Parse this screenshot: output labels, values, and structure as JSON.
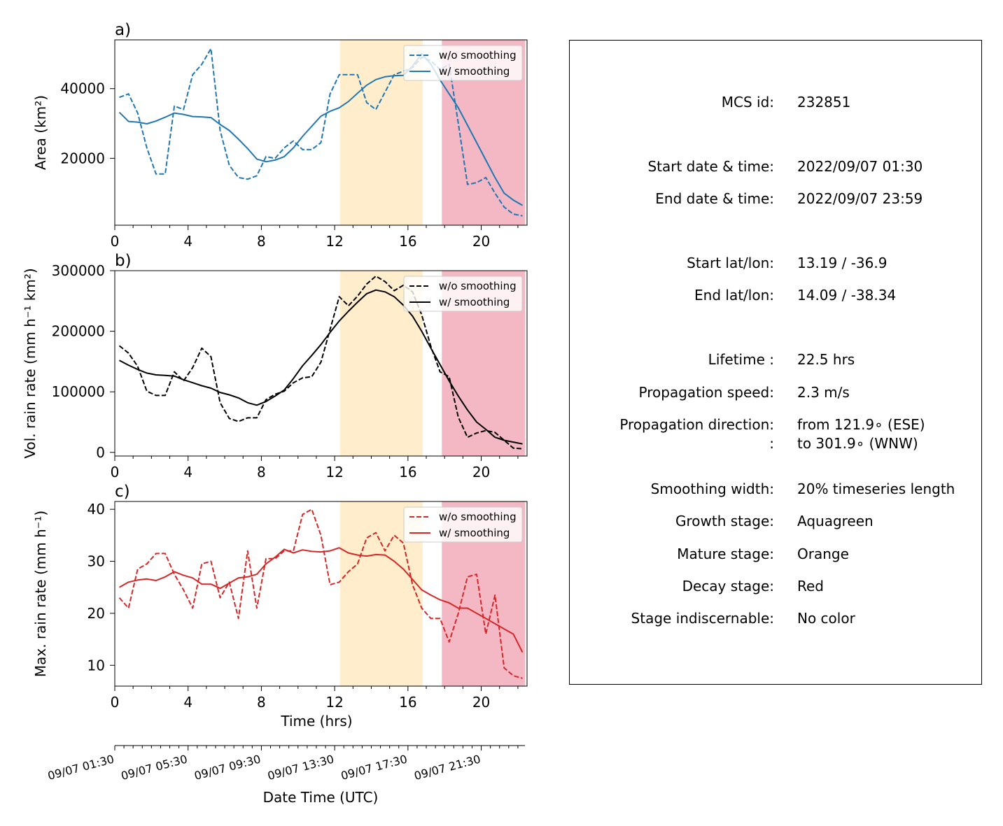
{
  "chart_data": [
    {
      "id": "a",
      "type": "line",
      "panel_label": "a)",
      "ylabel": "Area  (km²)",
      "xlim": [
        0,
        22.5
      ],
      "ylim": [
        800,
        54000
      ],
      "yticks": [
        20000,
        40000
      ],
      "ytick_labels": [
        "20000",
        "40000"
      ],
      "xticks": [
        0,
        4,
        8,
        12,
        16,
        20
      ],
      "xtick_labels": [
        "0",
        "4",
        "8",
        "12",
        "16",
        "20"
      ],
      "color": "#1f77b4",
      "legend_position": "upper right",
      "series": [
        {
          "name": "w/o smoothing",
          "style": "dashed",
          "x": [
            0.25,
            0.75,
            1.25,
            1.75,
            2.25,
            2.75,
            3.25,
            3.75,
            4.25,
            4.75,
            5.25,
            5.75,
            6.25,
            6.75,
            7.25,
            7.75,
            8.25,
            8.75,
            9.25,
            9.75,
            10.25,
            10.75,
            11.25,
            11.75,
            12.25,
            12.75,
            13.25,
            13.75,
            14.25,
            14.75,
            15.25,
            15.75,
            16.25,
            16.75,
            17.25,
            17.75,
            18.25,
            18.75,
            19.25,
            19.75,
            20.25,
            20.75,
            21.25,
            21.75,
            22.25
          ],
          "y": [
            37500,
            38500,
            33000,
            23000,
            15500,
            15500,
            35000,
            34000,
            44000,
            47000,
            51500,
            28000,
            18000,
            14500,
            14000,
            15000,
            20500,
            20000,
            23000,
            25000,
            22500,
            22500,
            24500,
            38500,
            44000,
            44000,
            44000,
            36000,
            34000,
            39000,
            44000,
            45000,
            46000,
            49000,
            48000,
            45500,
            47000,
            30000,
            12500,
            13000,
            14500,
            10000,
            6000,
            4000,
            3500
          ]
        },
        {
          "name": "w/ smoothing",
          "style": "solid",
          "x": [
            0.25,
            0.75,
            1.25,
            1.75,
            2.25,
            2.75,
            3.25,
            3.75,
            4.25,
            4.75,
            5.25,
            5.75,
            6.25,
            6.75,
            7.25,
            7.75,
            8.25,
            8.75,
            9.25,
            9.75,
            10.25,
            10.75,
            11.25,
            11.75,
            12.25,
            12.75,
            13.25,
            13.75,
            14.25,
            14.75,
            15.25,
            15.75,
            16.25,
            16.75,
            17.25,
            17.75,
            18.25,
            18.75,
            19.25,
            19.75,
            20.25,
            20.75,
            21.25,
            21.75,
            22.25
          ],
          "y": [
            33200,
            30600,
            30400,
            29900,
            30700,
            31800,
            33000,
            32600,
            32000,
            31900,
            31700,
            29700,
            28000,
            25500,
            22800,
            19800,
            19000,
            19500,
            20500,
            23000,
            26300,
            29200,
            32100,
            33500,
            34500,
            36300,
            38700,
            41000,
            42600,
            43400,
            43700,
            43800,
            46500,
            50000,
            47000,
            42500,
            38500,
            34500,
            29500,
            24500,
            19500,
            14500,
            10000,
            8000,
            6500
          ]
        }
      ]
    },
    {
      "id": "b",
      "type": "line",
      "panel_label": "b)",
      "ylabel": "Vol. rain rate (mm h⁻¹ km²)",
      "xlim": [
        0,
        22.5
      ],
      "ylim": [
        -6000,
        300000
      ],
      "yticks": [
        0,
        100000,
        200000,
        300000
      ],
      "ytick_labels": [
        "0",
        "100000",
        "200000",
        "300000"
      ],
      "xticks": [
        0,
        4,
        8,
        12,
        16,
        20
      ],
      "xtick_labels": [
        "0",
        "4",
        "8",
        "12",
        "16",
        "20"
      ],
      "color": "#000000",
      "legend_position": "upper right",
      "series": [
        {
          "name": "w/o smoothing",
          "style": "dashed",
          "x": [
            0.25,
            0.75,
            1.25,
            1.75,
            2.25,
            2.75,
            3.25,
            3.75,
            4.25,
            4.75,
            5.25,
            5.75,
            6.25,
            6.75,
            7.25,
            7.75,
            8.25,
            8.75,
            9.25,
            9.75,
            10.25,
            10.75,
            11.25,
            11.75,
            12.25,
            12.75,
            13.25,
            13.75,
            14.25,
            14.75,
            15.25,
            15.75,
            16.25,
            16.75,
            17.25,
            17.75,
            18.25,
            18.75,
            19.25,
            19.75,
            20.25,
            20.75,
            21.25,
            21.75,
            22.25
          ],
          "y": [
            176000,
            164000,
            142000,
            101000,
            94000,
            94000,
            133000,
            118000,
            140000,
            172000,
            158000,
            82000,
            56000,
            51000,
            57000,
            57000,
            87000,
            96000,
            101000,
            115000,
            123000,
            125000,
            149000,
            203000,
            257000,
            242000,
            258000,
            278000,
            291000,
            282000,
            267000,
            276000,
            265000,
            227000,
            175000,
            133000,
            125000,
            58000,
            25000,
            32000,
            36000,
            33000,
            20000,
            7000,
            6000
          ]
        },
        {
          "name": "w/ smoothing",
          "style": "solid",
          "x": [
            0.25,
            0.75,
            1.25,
            1.75,
            2.25,
            2.75,
            3.25,
            3.75,
            4.25,
            4.75,
            5.25,
            5.75,
            6.25,
            6.75,
            7.25,
            7.75,
            8.25,
            8.75,
            9.25,
            9.75,
            10.25,
            10.75,
            11.25,
            11.75,
            12.25,
            12.75,
            13.25,
            13.75,
            14.25,
            14.75,
            15.25,
            15.75,
            16.25,
            16.75,
            17.25,
            17.75,
            18.25,
            18.75,
            19.25,
            19.75,
            20.25,
            20.75,
            21.25,
            21.75,
            22.25
          ],
          "y": [
            152000,
            144000,
            137000,
            131000,
            128000,
            127000,
            126000,
            120000,
            115000,
            110000,
            106000,
            99000,
            95000,
            90000,
            82000,
            78000,
            84000,
            93000,
            103000,
            122000,
            143000,
            160000,
            178000,
            198000,
            217000,
            233000,
            248000,
            262000,
            268000,
            265000,
            257000,
            243000,
            225000,
            200000,
            172000,
            145000,
            118000,
            93000,
            70000,
            50000,
            38000,
            25000,
            20000,
            17000,
            14000
          ]
        }
      ]
    },
    {
      "id": "c",
      "type": "line",
      "panel_label": "c)",
      "ylabel": "Max. rain rate  (mm h⁻¹)",
      "xlabel": "Time (hrs)",
      "xlim": [
        0,
        22.5
      ],
      "ylim": [
        6,
        41.5
      ],
      "yticks": [
        10,
        20,
        30,
        40
      ],
      "ytick_labels": [
        "10",
        "20",
        "30",
        "40"
      ],
      "xticks": [
        0,
        4,
        8,
        12,
        16,
        20
      ],
      "xtick_labels": [
        "0",
        "4",
        "8",
        "12",
        "16",
        "20"
      ],
      "color": "#d62728",
      "legend_position": "upper right",
      "series": [
        {
          "name": "w/o smoothing",
          "style": "dashed",
          "x": [
            0.25,
            0.75,
            1.25,
            1.75,
            2.25,
            2.75,
            3.25,
            3.75,
            4.25,
            4.75,
            5.25,
            5.75,
            6.25,
            6.75,
            7.25,
            7.75,
            8.25,
            8.75,
            9.25,
            9.75,
            10.25,
            10.75,
            11.25,
            11.75,
            12.25,
            12.75,
            13.25,
            13.75,
            14.25,
            14.75,
            15.25,
            15.75,
            16.25,
            16.75,
            17.25,
            17.75,
            18.25,
            18.75,
            19.25,
            19.75,
            20.25,
            20.75,
            21.25,
            21.75,
            22.25
          ],
          "y": [
            23.0,
            21.0,
            28.5,
            29.5,
            31.5,
            31.5,
            27.5,
            24.5,
            21.0,
            29.5,
            30.0,
            23.0,
            26.0,
            19.0,
            32.0,
            21.0,
            30.5,
            30.5,
            32.0,
            32.0,
            39.0,
            40.0,
            35.0,
            25.5,
            26.0,
            28.0,
            29.5,
            34.5,
            35.5,
            32.0,
            35.0,
            33.5,
            25.5,
            21.0,
            19.0,
            19.0,
            14.5,
            20.0,
            27.0,
            27.5,
            16.0,
            23.5,
            9.5,
            8.0,
            7.5
          ]
        },
        {
          "name": "w/ smoothing",
          "style": "solid",
          "x": [
            0.25,
            0.75,
            1.25,
            1.75,
            2.25,
            2.75,
            3.25,
            3.75,
            4.25,
            4.75,
            5.25,
            5.75,
            6.25,
            6.75,
            7.25,
            7.75,
            8.25,
            8.75,
            9.25,
            9.75,
            10.25,
            10.75,
            11.25,
            11.75,
            12.25,
            12.75,
            13.25,
            13.75,
            14.25,
            14.75,
            15.25,
            15.75,
            16.25,
            16.75,
            17.25,
            17.75,
            18.25,
            18.75,
            19.25,
            19.75,
            20.25,
            20.75,
            21.25,
            21.75,
            22.25
          ],
          "y": [
            25.0,
            26.0,
            26.4,
            26.6,
            26.3,
            27.0,
            28.0,
            27.3,
            26.8,
            25.6,
            25.6,
            24.8,
            25.8,
            26.8,
            27.0,
            27.5,
            29.5,
            30.8,
            32.3,
            31.6,
            32.2,
            31.9,
            31.8,
            32.0,
            32.6,
            31.6,
            31.2,
            31.0,
            31.3,
            31.2,
            30.0,
            28.5,
            26.5,
            24.5,
            23.5,
            22.6,
            22.0,
            21.0,
            21.0,
            20.0,
            19.0,
            18.0,
            17.0,
            16.0,
            12.5
          ]
        }
      ]
    },
    {
      "id": "datetime-axis",
      "type": "axis",
      "xlabel": "Date Time (UTC)",
      "xlim": [
        0,
        22.5
      ],
      "xticks": [
        0,
        4,
        8,
        12,
        16,
        20
      ],
      "xtick_labels": [
        "09/07 01:30",
        "09/07 05:30",
        "09/07 09:30",
        "09/07 13:30",
        "09/07 17:30",
        "09/07 21:30"
      ]
    }
  ],
  "stages": [
    {
      "name": "Mature stage",
      "color": "#ffedcc",
      "x0": 12.3,
      "x1": 16.8
    },
    {
      "name": "Decay stage",
      "color": "#f3b8c4",
      "x0": 17.85,
      "x1": 22.4
    }
  ],
  "info": {
    "rows": [
      {
        "label": "MCS id:",
        "value": "232851"
      },
      {
        "label": "Start date & time:",
        "value": "2022/09/07 01:30"
      },
      {
        "label": "End date & time:",
        "value": "2022/09/07 23:59"
      },
      {
        "label": "Start lat/lon:",
        "value": "13.19 / -36.9"
      },
      {
        "label": "End lat/lon:",
        "value": "14.09 / -38.34"
      },
      {
        "label": "Lifetime :",
        "value": "22.5 hrs"
      },
      {
        "label": "Propagation speed:",
        "value": "2.3 m/s"
      },
      {
        "label": "Propagation direction:",
        "value": "from 121.9∘ (ESE)"
      },
      {
        "label": ":",
        "value": "to   301.9∘ (WNW)"
      },
      {
        "label": "Smoothing width:",
        "value": "20% timeseries length"
      },
      {
        "label": "Growth stage:",
        "value": "Aquagreen"
      },
      {
        "label": "Mature stage:",
        "value": "Orange"
      },
      {
        "label": "Decay stage:",
        "value": "Red"
      },
      {
        "label": "Stage indiscernable:",
        "value": "No color"
      }
    ]
  }
}
